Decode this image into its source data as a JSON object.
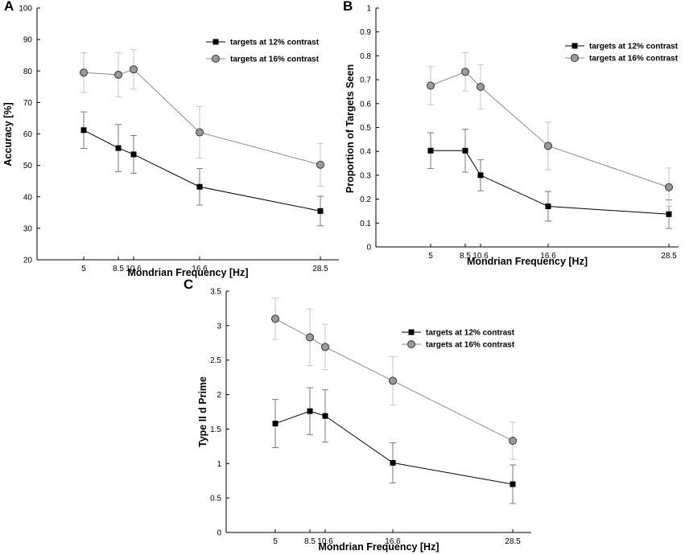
{
  "chart_data": [
    {
      "type": "line",
      "panel": "A",
      "xlabel": "Mondrian Frequency [Hz]",
      "ylabel": "Accuracy [%]",
      "x": [
        5,
        8.5,
        10.6,
        16.6,
        28.5
      ],
      "x_tick_labels": [
        "5",
        "8.5",
        "10.6",
        "16.6",
        "28.5"
      ],
      "ylim": [
        20,
        100
      ],
      "y_ticks": [
        20,
        30,
        40,
        50,
        60,
        70,
        80,
        90,
        100
      ],
      "legend_position": "top-right",
      "series": [
        {
          "name": "targets at 12% contrast",
          "marker": "square",
          "color": "#000000",
          "values": [
            61.2,
            55.5,
            53.5,
            43.2,
            35.5
          ],
          "errors": [
            5.8,
            7.5,
            6.0,
            5.8,
            4.7
          ]
        },
        {
          "name": "targets at 16% contrast",
          "marker": "circle",
          "color": "#999999",
          "values": [
            79.5,
            78.8,
            80.5,
            60.5,
            50.2
          ],
          "errors": [
            6.3,
            7.0,
            6.3,
            8.2,
            6.8
          ]
        }
      ]
    },
    {
      "type": "line",
      "panel": "B",
      "xlabel": "Mondrian Frequency [Hz]",
      "ylabel": "Proportion of Targets Seen",
      "x": [
        5,
        8.5,
        10.6,
        16.6,
        28.5
      ],
      "x_tick_labels": [
        "5",
        "8.5",
        "10.6",
        "16.6",
        "28.5"
      ],
      "ylim": [
        0,
        1
      ],
      "y_ticks": [
        "0",
        "0.1",
        "0.2",
        "0.3",
        "0.4",
        "0.5",
        "0.6",
        "0.7",
        "0.8",
        "0.9",
        "1"
      ],
      "legend_position": "top-right",
      "series": [
        {
          "name": "targets at 12% contrast",
          "marker": "square",
          "color": "#000000",
          "values": [
            0.403,
            0.403,
            0.3,
            0.17,
            0.137
          ],
          "errors": [
            0.075,
            0.09,
            0.065,
            0.062,
            0.06
          ]
        },
        {
          "name": "targets at 16% contrast",
          "marker": "circle",
          "color": "#999999",
          "values": [
            0.675,
            0.733,
            0.67,
            0.423,
            0.25
          ],
          "errors": [
            0.08,
            0.08,
            0.093,
            0.1,
            0.08
          ]
        }
      ]
    },
    {
      "type": "line",
      "panel": "C",
      "xlabel": "Mondrian Frequency [Hz]",
      "ylabel": "Type II d Prime",
      "x": [
        5,
        8.5,
        10.6,
        16.6,
        28.5
      ],
      "x_tick_labels": [
        "5",
        "8.5",
        "10.6",
        "16.6",
        "28.5"
      ],
      "ylim": [
        0,
        3.5
      ],
      "y_ticks": [
        "0",
        "0.5",
        "1",
        "1.5",
        "2",
        "2.5",
        "3",
        "3.5"
      ],
      "legend_position": "top-right",
      "series": [
        {
          "name": "targets at 12% contrast",
          "marker": "square",
          "color": "#000000",
          "values": [
            1.58,
            1.76,
            1.69,
            1.01,
            0.7
          ],
          "errors": [
            0.35,
            0.34,
            0.38,
            0.29,
            0.28
          ]
        },
        {
          "name": "targets at 16% contrast",
          "marker": "circle",
          "color": "#999999",
          "values": [
            3.1,
            2.83,
            2.69,
            2.2,
            1.33
          ],
          "errors": [
            0.3,
            0.41,
            0.33,
            0.35,
            0.27
          ]
        }
      ]
    }
  ]
}
